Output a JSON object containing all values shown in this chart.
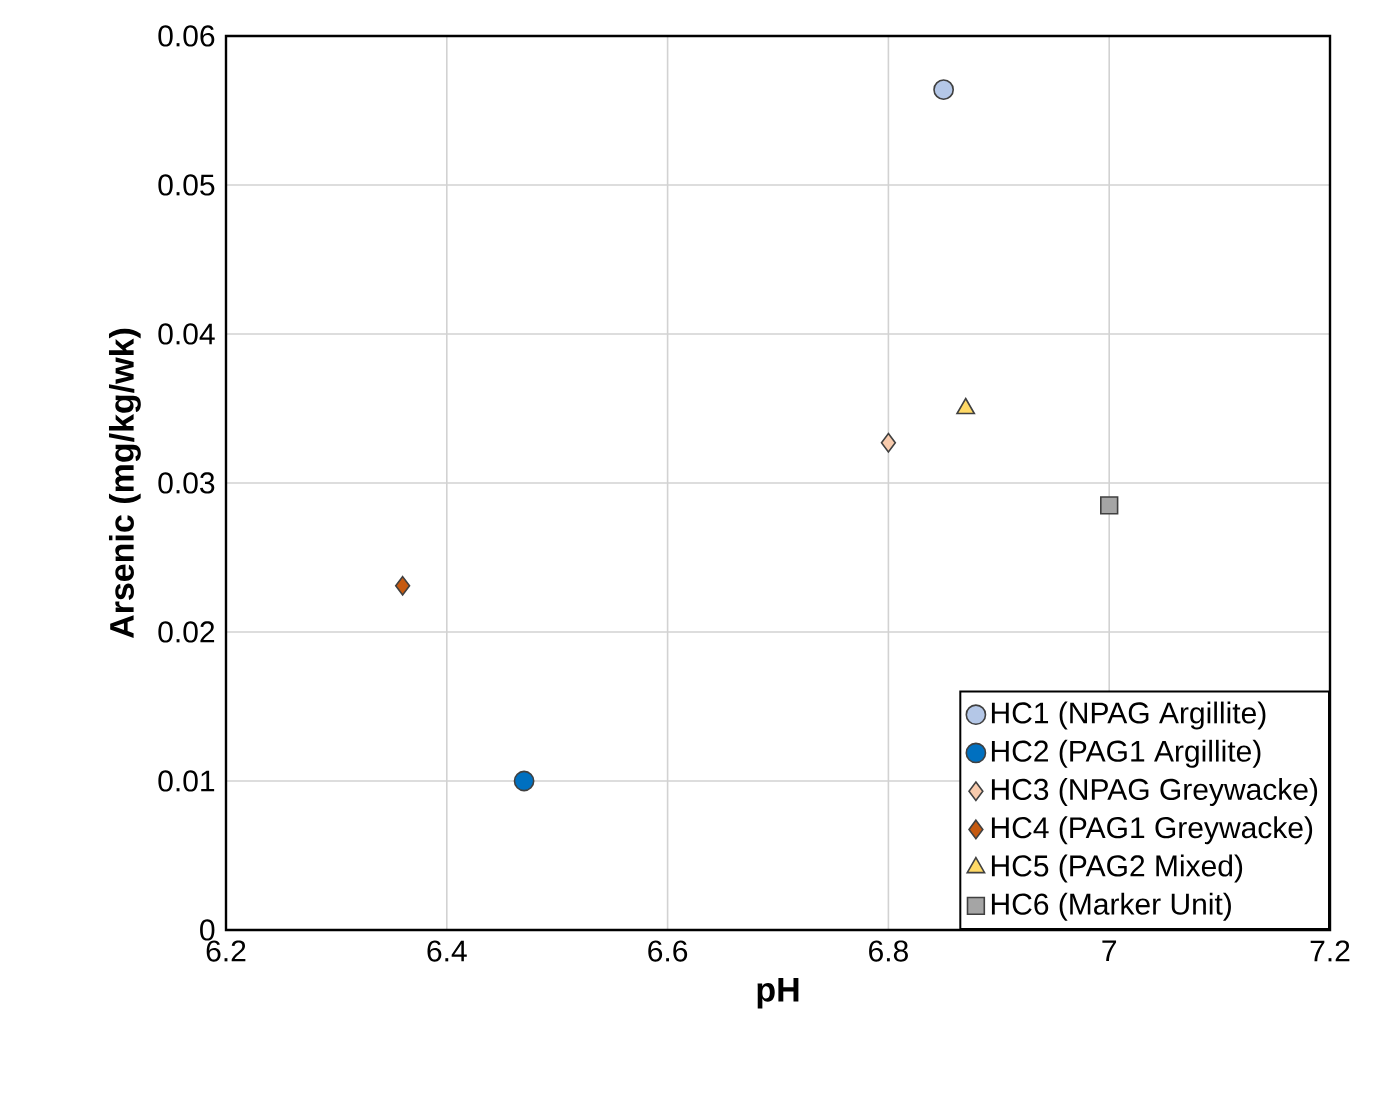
{
  "chart_data": {
    "type": "scatter",
    "xlabel": "pH",
    "ylabel": "Arsenic (mg/kg/wk)",
    "xlim": [
      6.2,
      7.2
    ],
    "xticks": [
      6.2,
      6.4,
      6.6,
      6.8,
      7,
      7.2
    ],
    "ylim": [
      0,
      0.06
    ],
    "yticks": [
      0,
      0.01,
      0.02,
      0.03,
      0.04,
      0.05,
      0.06
    ],
    "grid": true,
    "legend": "bottom right",
    "series": [
      {
        "name": "HC1 (NPAG Argillite)",
        "color": "#b4c7e7",
        "marker": "circle",
        "x": [
          6.85
        ],
        "values": [
          0.0564
        ]
      },
      {
        "name": "HC2 (PAG1 Argillite)",
        "color": "#0070c0",
        "marker": "circle",
        "x": [
          6.47
        ],
        "values": [
          0.01
        ]
      },
      {
        "name": "HC3 (NPAG Greywacke)",
        "color": "#f8cbad",
        "marker": "diamond",
        "x": [
          6.8
        ],
        "values": [
          0.0327
        ]
      },
      {
        "name": "HC4 (PAG1 Greywacke)",
        "color": "#c55a11",
        "marker": "diamond",
        "x": [
          6.36
        ],
        "values": [
          0.0231
        ]
      },
      {
        "name": "HC5 (PAG2 Mixed)",
        "color": "#ffd966",
        "marker": "triangle",
        "x": [
          6.87
        ],
        "values": [
          0.035
        ]
      },
      {
        "name": "HC6 (Marker Unit)",
        "color": "#a5a5a5",
        "marker": "square",
        "x": [
          7.0
        ],
        "values": [
          0.0285
        ]
      }
    ]
  }
}
